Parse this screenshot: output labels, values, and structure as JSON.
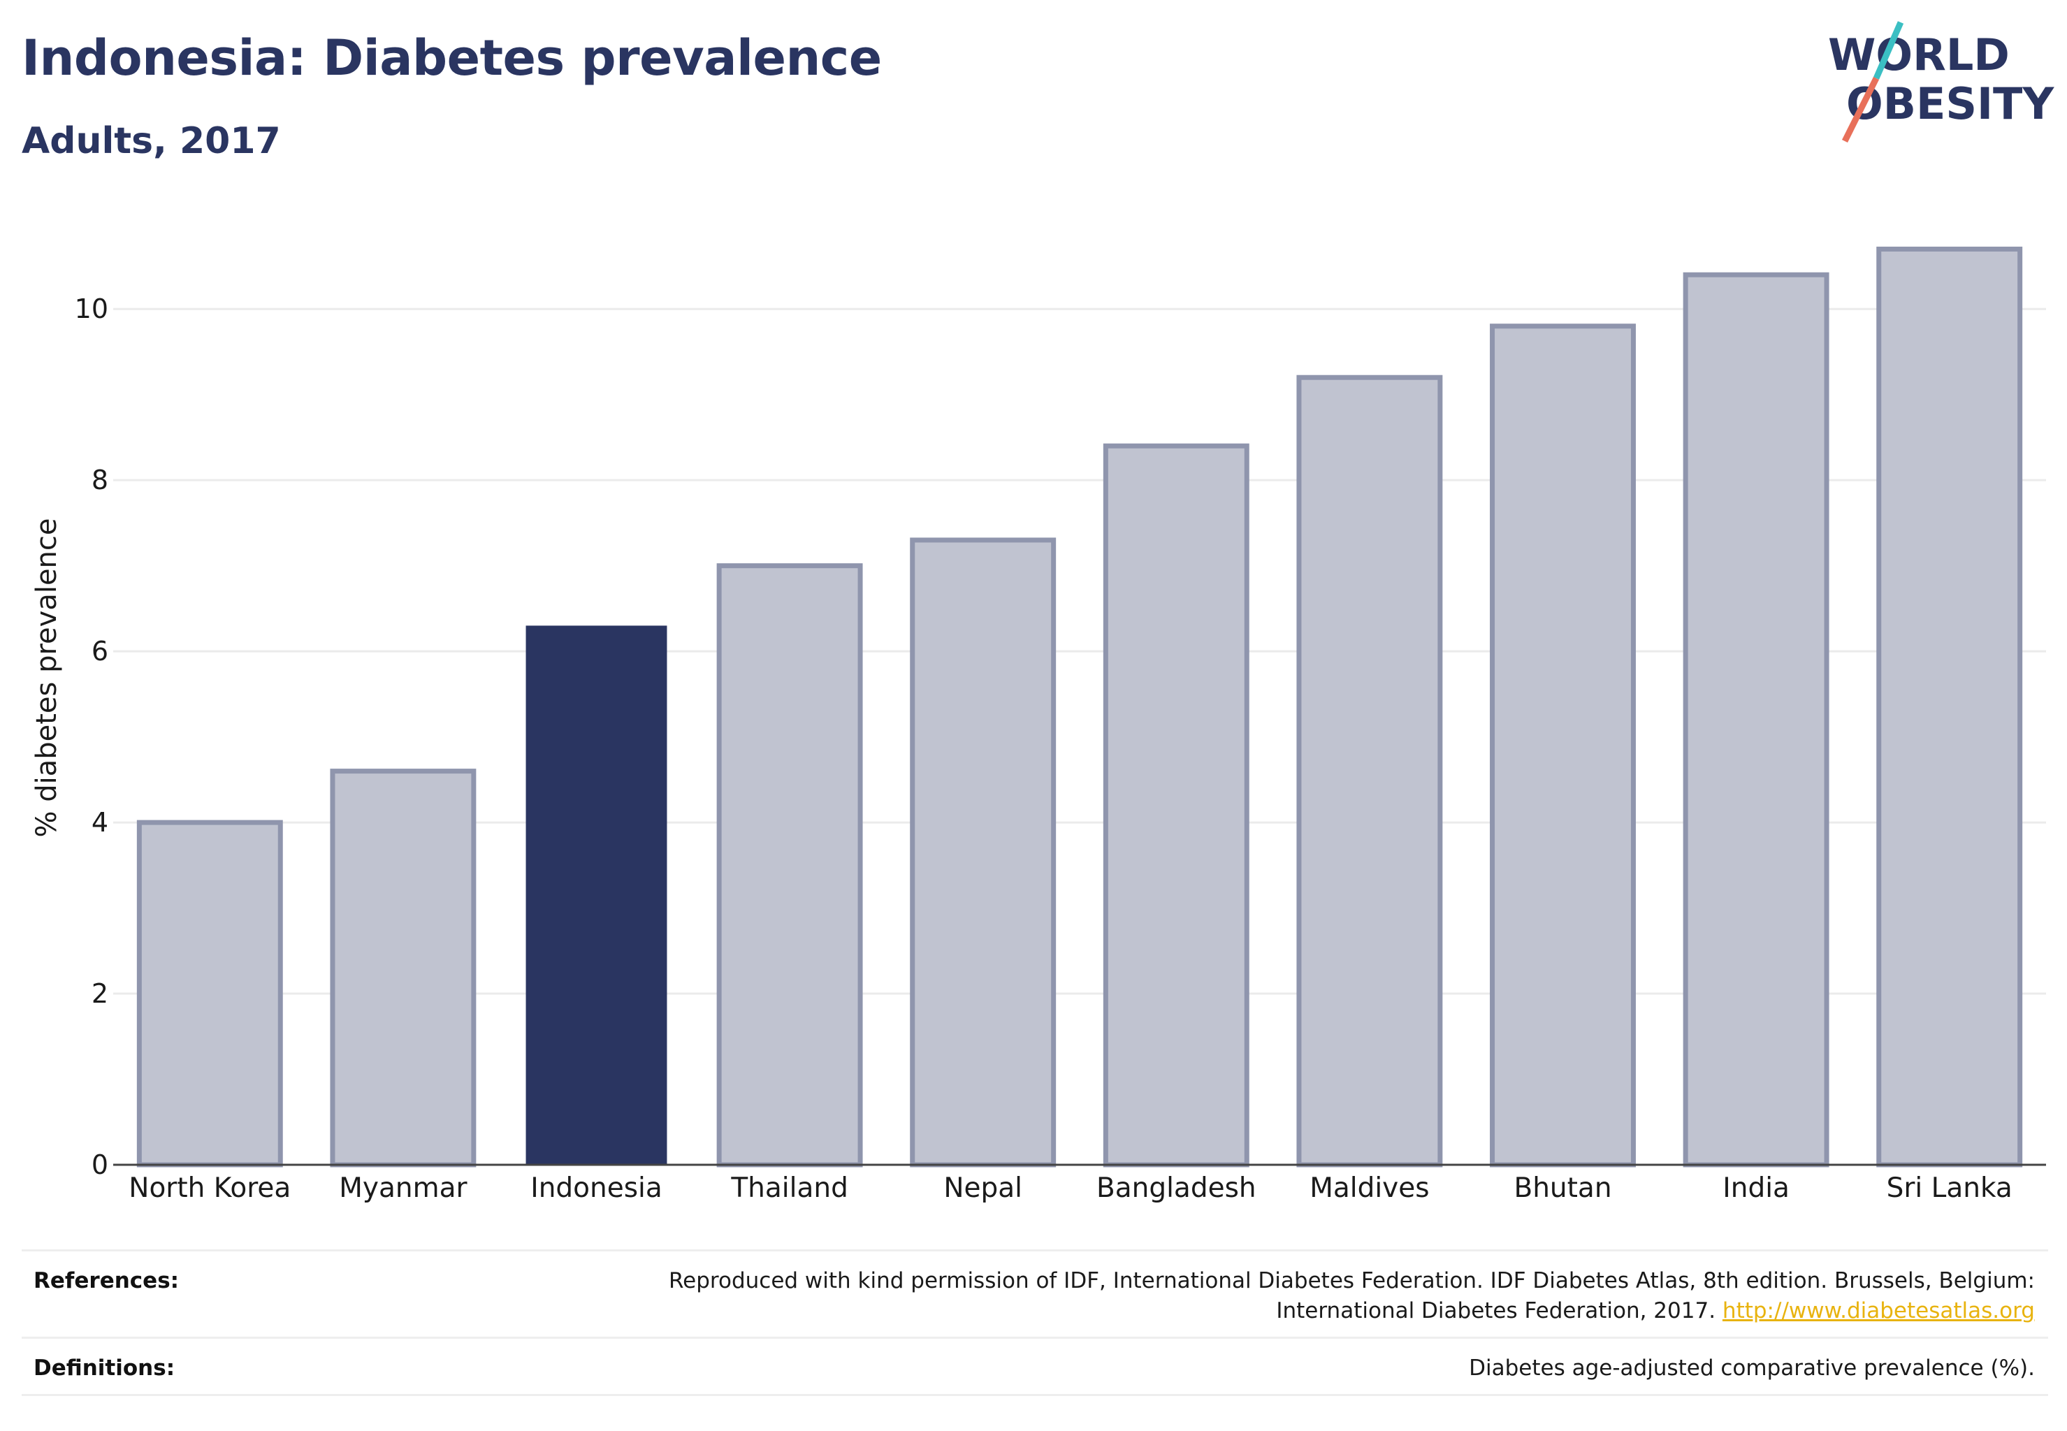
{
  "header": {
    "title": "Indonesia: Diabetes prevalence",
    "subtitle": "Adults, 2017"
  },
  "logo": {
    "line1": "WORLD",
    "line2": "OBESITY",
    "colors": {
      "text": "#2a3561",
      "slash_top": "#3bbfc3",
      "slash_bottom": "#e8705a"
    }
  },
  "chart_data": {
    "type": "bar",
    "title": "Indonesia: Diabetes prevalence",
    "subtitle": "Adults, 2017",
    "xlabel": "",
    "ylabel": "% diabetes prevalence",
    "ylim": [
      0,
      10.9
    ],
    "yticks": [
      0,
      2,
      4,
      6,
      8,
      10
    ],
    "grid": true,
    "categories": [
      "North Korea",
      "Myanmar",
      "Indonesia",
      "Thailand",
      "Nepal",
      "Bangladesh",
      "Maldives",
      "Bhutan",
      "India",
      "Sri Lanka"
    ],
    "values": [
      4.0,
      4.6,
      6.3,
      7.0,
      7.3,
      8.4,
      9.2,
      9.8,
      10.4,
      10.7
    ],
    "highlight": "Indonesia",
    "colors": {
      "highlight": "#2a3561",
      "default_fill": "#c0c3d0",
      "default_stroke": "#8f95ad"
    }
  },
  "footer": {
    "references_label": "References:",
    "references_line1": "Reproduced with kind permission of IDF, International Diabetes Federation. IDF Diabetes Atlas, 8th edition. Brussels, Belgium:",
    "references_line2": "International Diabetes Federation, 2017.",
    "references_link": "http://www.diabetesatlas.org",
    "definitions_label": "Definitions:",
    "definitions_text": "Diabetes age-adjusted comparative prevalence (%)."
  }
}
